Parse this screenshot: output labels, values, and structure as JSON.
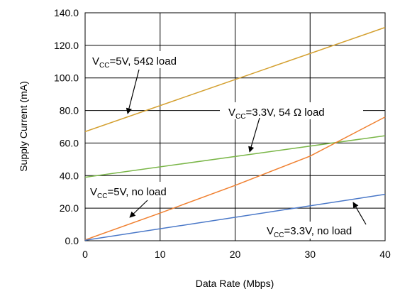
{
  "chart_data": {
    "type": "line",
    "xlabel": "Data Rate (Mbps)",
    "ylabel": "Supply Current (mA)",
    "xlim": [
      0,
      40
    ],
    "ylim": [
      0,
      140
    ],
    "x_ticks": [
      "0",
      "10",
      "20",
      "30",
      "40"
    ],
    "y_ticks": [
      "0.0",
      "20.0",
      "40.0",
      "60.0",
      "80.0",
      "100.0",
      "120.0",
      "140.0"
    ],
    "grid": true,
    "series": [
      {
        "key": "s5v54",
        "color": "#d4a030",
        "points": [
          [
            0,
            67
          ],
          [
            40,
            131
          ]
        ],
        "label": {
          "pre": "V",
          "sub": "CC",
          "post": "=5V, 54Ω load"
        }
      },
      {
        "key": "s33v54",
        "color": "#7ab648",
        "points": [
          [
            0,
            39
          ],
          [
            40,
            64.5
          ]
        ],
        "label": {
          "pre": "V",
          "sub": "CC",
          "post": "=3.3V, 54 Ω load"
        }
      },
      {
        "key": "s5vno",
        "color": "#f08030",
        "points": [
          [
            0,
            0.5
          ],
          [
            10,
            17
          ],
          [
            20,
            34
          ],
          [
            30,
            52
          ],
          [
            40,
            76
          ]
        ],
        "label": {
          "pre": "V",
          "sub": "CC",
          "post": "=5V, no load"
        }
      },
      {
        "key": "s33vno",
        "color": "#4a78c8",
        "points": [
          [
            0,
            0.3
          ],
          [
            40,
            28.5
          ]
        ],
        "label": {
          "pre": "V",
          "sub": "CC",
          "post": "=3.3V, no load"
        }
      }
    ]
  }
}
